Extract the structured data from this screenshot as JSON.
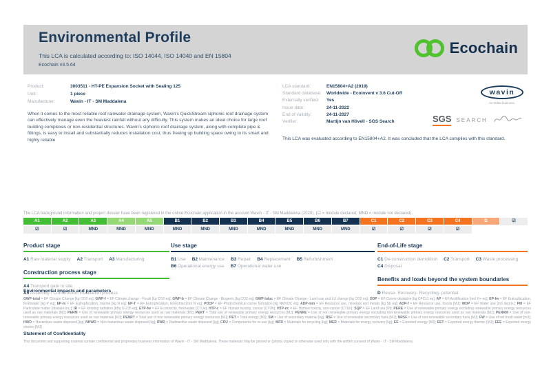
{
  "header": {
    "title": "Environmental Profile",
    "subtitle": "This LCA is calculated according to: ISO 14044, ISO 14040 and EN 15804",
    "version": "Ecochain v3.5.64",
    "brand": "Ecochain"
  },
  "product_info": {
    "rows": [
      {
        "label": "Product:",
        "value": "3003511 - HT-PE Expansion Socket with Sealing 125"
      },
      {
        "label": "Unit:",
        "value": "1 piece"
      },
      {
        "label": "Manufacturer:",
        "value": "Wavin - IT - SM Maddalena"
      }
    ],
    "description": "When it comes to the most reliable roof rainwater drainage system, Wavin's QuickStream siphonic roof drainage system can effectively manage even the heaviest rainfall without any difficulty. This system makes an ideal choice for large roof building complexes or non-residential structures. Wavin's siphonic roof drainage system, along with complete pipe & fittings, is easy to install and substantially reduces installation cost, thus freeing up building space owing to its smart and highly reliable"
  },
  "lca_info": {
    "rows": [
      {
        "label": "LCA standard:",
        "value": "EN15804+A2 (2019)"
      },
      {
        "label": "Standard database:",
        "value": "Worldwide - Ecoinvent v 3.6 Cut-Off"
      },
      {
        "label": "Externally verified:",
        "value": "Yes"
      },
      {
        "label": "Issue date:",
        "value": "24-11-2022"
      },
      {
        "label": "End of validity:",
        "value": "24-11-2027"
      },
      {
        "label": "Verifier:",
        "value": "Martijn van Hövell - SGS Search"
      }
    ],
    "evaluation": "This LCA was evaluated according to EN15804+A2. It was concluded that the LCA complies with this standard."
  },
  "logos": {
    "wavin": {
      "name": "wavin",
      "tagline": "An Orbia business."
    },
    "sgs": {
      "name": "SGS",
      "sub": "SEARCH"
    }
  },
  "modules": {
    "intro": "The LCA background information and project dossier have been registered in the online Ecochain application in the account Wavin - IT - SM Maddalena (2020). (☑ = module declared; MND = module not declared).",
    "columns": [
      {
        "code": "A1",
        "group": "green",
        "status": "☑"
      },
      {
        "code": "A2",
        "group": "green",
        "status": "☑"
      },
      {
        "code": "A3",
        "group": "green",
        "status": "☑"
      },
      {
        "code": "A4",
        "group": "lightgreen",
        "status": "MND"
      },
      {
        "code": "A5",
        "group": "lightgreen",
        "status": "MND"
      },
      {
        "code": "B1",
        "group": "navy",
        "status": "MND"
      },
      {
        "code": "B2",
        "group": "navy",
        "status": "MND"
      },
      {
        "code": "B3",
        "group": "navy",
        "status": "MND"
      },
      {
        "code": "B4",
        "group": "navy",
        "status": "MND"
      },
      {
        "code": "B5",
        "group": "navy",
        "status": "MND"
      },
      {
        "code": "B6",
        "group": "navy",
        "status": "MND"
      },
      {
        "code": "B7",
        "group": "navy",
        "status": "MND"
      },
      {
        "code": "C1",
        "group": "orange",
        "status": "MND"
      },
      {
        "code": "C2",
        "group": "orange",
        "status": "☑"
      },
      {
        "code": "C3",
        "group": "orange",
        "status": "☑"
      },
      {
        "code": "C4",
        "group": "orange",
        "status": "☑"
      },
      {
        "code": "D",
        "group": "lightorange",
        "status": "☑"
      }
    ]
  },
  "stages": {
    "product": {
      "title": "Product stage",
      "items": [
        {
          "c": "A1",
          "t": "Raw material supply"
        },
        {
          "c": "A2",
          "t": "Transport"
        },
        {
          "c": "A3",
          "t": "Manufacturing"
        }
      ]
    },
    "construction": {
      "title": "Construction process stage",
      "items": [
        {
          "c": "A4",
          "t": "Transport gate to site"
        },
        {
          "c": "A5",
          "t": "Assembly / Construction installation process",
          "br": true
        }
      ]
    },
    "use": {
      "title": "Use stage",
      "items": [
        {
          "c": "B1",
          "t": "Use"
        },
        {
          "c": "B2",
          "t": "Maintenance"
        },
        {
          "c": "B3",
          "t": "Repair"
        },
        {
          "c": "B4",
          "t": "Replacement"
        },
        {
          "c": "B5",
          "t": "Refurbishment"
        },
        {
          "c": "B6",
          "t": "Operational energy use",
          "br": true
        },
        {
          "c": "B7",
          "t": "Operational water use"
        }
      ]
    },
    "eol": {
      "title": "End-of-Life stage",
      "items": [
        {
          "c": "C1",
          "t": "De-construction demolition"
        },
        {
          "c": "C2",
          "t": "Transport"
        },
        {
          "c": "C3",
          "t": "Waste processing"
        },
        {
          "c": "C4",
          "t": "Disposal",
          "br": true
        }
      ]
    },
    "benefits": {
      "title": "Benefits and loads beyond the system boundaries",
      "items": [
        {
          "c": "D",
          "t": "Reuse- Recovery- Recycling- potential"
        }
      ]
    }
  },
  "impacts": {
    "title": "Environmental impacts and parameters",
    "parameters": [
      {
        "c": "GWP-total",
        "t": "EF Climate Change [kg CO2 eq]"
      },
      {
        "c": "GWP-f",
        "t": "EF Climate change - Fossil [kg CO2 eq]"
      },
      {
        "c": "GWP-b",
        "t": "EF Climate Change - Biogenic [kg CO2 eq]"
      },
      {
        "c": "GWP-luluc",
        "t": "EF Climate Change - Land use and LU change [kg CO2 eq]"
      },
      {
        "c": "ODP",
        "t": "EF Ozone depletion [kg CFC11 eq]"
      },
      {
        "c": "AP",
        "t": "EF Acidification [mol H+ eq]"
      },
      {
        "c": "EP-fw",
        "t": "EF Eutrophication, freshwater [kg P eq]"
      },
      {
        "c": "EP-m",
        "t": "EF Eutrophication, marine [kg N eq]"
      },
      {
        "c": "EP-T",
        "t": "EF Eutrophication, terrestrial [mol N eq]"
      },
      {
        "c": "POCP",
        "t": "EF Photochemical ozone formation [kg NMVOC eq]"
      },
      {
        "c": "ADP-mm",
        "t": "EF Resource use, minerals and metals [kg Sb eq]"
      },
      {
        "c": "ADP-f",
        "t": "EF Resource use, fossils [MJ]"
      },
      {
        "c": "WDP",
        "t": "EF Water use [m3 depriv.]"
      },
      {
        "c": "PM",
        "t": "EF Particulate matter [disease inc.]"
      },
      {
        "c": "IR",
        "t": "EF Ionising radiation [kBq U-235 eq]"
      },
      {
        "c": "ETP-fw",
        "t": "EF Ecotoxicity, freshwater [CTUe]"
      },
      {
        "c": "HTP-c",
        "t": "EF Human toxicity, cancer [CTUh]"
      },
      {
        "c": "HTP-nc",
        "t": "EF Human toxicity, non-cancer [CTUh]"
      },
      {
        "c": "SQP",
        "t": "EF Land use [Pt]"
      },
      {
        "c": "PERE",
        "t": "Use of renewable primary energy excluding renewable primary energy resources used as raw materials [MJ]"
      },
      {
        "c": "PERM",
        "t": "Use of renewable primary energy resources used as raw materials [MJ]"
      },
      {
        "c": "PERT",
        "t": "Total use of renewable primary energy resources [MJ]"
      },
      {
        "c": "PENRE",
        "t": "Use of non renewable primary energy excluding non-renewable primary energy resources used as raw materials [MJ]"
      },
      {
        "c": "PENRM",
        "t": "Use of non-renewable primary energy resources used as raw materials [MJ]"
      },
      {
        "c": "PENRT",
        "t": "Total use of non renewable primary energy resources [MJ]"
      },
      {
        "c": "PET",
        "t": "Total energy [MJ]"
      },
      {
        "c": "SM",
        "t": "Use of secondary material [kg]"
      },
      {
        "c": "RSF",
        "t": "Use of renewable secondary fuels [MJ]"
      },
      {
        "c": "NRSF",
        "t": "Use of non-renewable secondary fuels [MJ]"
      },
      {
        "c": "FW",
        "t": "Use of net fresh water [m3]"
      },
      {
        "c": "HWD",
        "t": "Hazardous waste disposed [kg]"
      },
      {
        "c": "NHWD",
        "t": "Non-hazardous waste disposed [kg]"
      },
      {
        "c": "RWD",
        "t": "Radioactive waste disposed [kg]"
      },
      {
        "c": "CRU",
        "t": "Components for re-use [kg]"
      },
      {
        "c": "MFR",
        "t": "Materials for recycling [kg]"
      },
      {
        "c": "MER",
        "t": "Materials for energy recovery [kg]"
      },
      {
        "c": "EE",
        "t": "Exported energy [MJ]"
      },
      {
        "c": "EET",
        "t": "Exported energy thermic [MJ]"
      },
      {
        "c": "EEE",
        "t": "Exported energy electric [MJ]"
      }
    ]
  },
  "confidentiality": {
    "title": "Statement of Confidentiality",
    "text": "This document and supporting material contain confidential and proprietary business information of Wavin - IT - SM Maddalena. These materials may be printed or (photo) copied or otherwise used only with the written consent of Wavin - IT - SM Maddalena."
  },
  "colors": {
    "green": "#43bd33",
    "light_green": "#97d876",
    "navy": "#14314f",
    "orange": "#f4731f",
    "light_orange": "#f8a878",
    "band_gray": "#d4d4d4"
  }
}
